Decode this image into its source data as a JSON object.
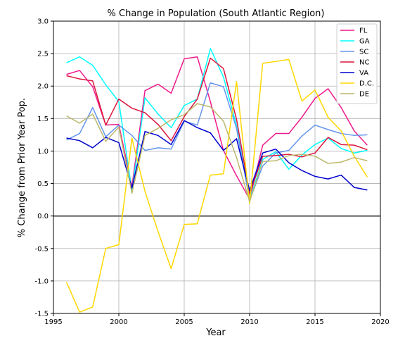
{
  "chart_data": {
    "type": "line",
    "title": "% Change in Population (South Atlantic Region)",
    "xlabel": "Year",
    "ylabel": "% Change from Prior Year Pop.",
    "xlim": [
      1995,
      2020
    ],
    "ylim": [
      -1.5,
      3.0
    ],
    "xticks": [
      "1995",
      "2000",
      "2005",
      "2010",
      "2015",
      "2020"
    ],
    "yticks": [
      "-1.5",
      "-1.0",
      "-0.5",
      "0.0",
      "0.5",
      "1.0",
      "1.5",
      "2.0",
      "2.5",
      "3.0"
    ],
    "grid": true,
    "legend": "top-right",
    "reference_line_y": 0,
    "x": [
      1996,
      1997,
      1998,
      1999,
      2000,
      2001,
      2002,
      2003,
      2004,
      2005,
      2006,
      2007,
      2008,
      2009,
      2010,
      2011,
      2012,
      2013,
      2014,
      2015,
      2016,
      2017,
      2018,
      2019
    ],
    "series": [
      {
        "name": "FL",
        "color": "#ee1a8c",
        "values": [
          2.18,
          2.24,
          1.99,
          1.4,
          1.41,
          0.45,
          1.93,
          2.03,
          1.89,
          2.42,
          2.45,
          1.76,
          1.01,
          0.62,
          0.26,
          1.09,
          1.27,
          1.27,
          1.52,
          1.81,
          1.96,
          1.67,
          1.31,
          1.09
        ]
      },
      {
        "name": "GA",
        "color": "#00ffff",
        "values": [
          2.36,
          2.45,
          2.32,
          2.02,
          1.76,
          0.38,
          1.82,
          1.57,
          1.36,
          1.7,
          1.8,
          2.58,
          2.14,
          1.39,
          0.25,
          0.87,
          0.99,
          0.72,
          0.94,
          1.1,
          1.2,
          1.04,
          0.97,
          1.01
        ]
      },
      {
        "name": "SC",
        "color": "#6495ed",
        "values": [
          1.17,
          1.27,
          1.67,
          1.22,
          1.4,
          1.24,
          1.01,
          1.05,
          1.03,
          1.46,
          1.4,
          2.05,
          1.99,
          1.35,
          0.24,
          0.77,
          0.97,
          1.01,
          1.23,
          1.4,
          1.33,
          1.27,
          1.24,
          1.25
        ]
      },
      {
        "name": "NC",
        "color": "#dc143c",
        "values": [
          2.16,
          2.11,
          2.08,
          1.4,
          1.8,
          1.66,
          1.59,
          1.41,
          1.16,
          1.53,
          1.8,
          2.43,
          2.27,
          1.49,
          0.34,
          0.92,
          0.93,
          0.95,
          0.91,
          0.97,
          1.21,
          1.1,
          1.09,
          1.02
        ]
      },
      {
        "name": "VA",
        "color": "#0000cd",
        "values": [
          1.2,
          1.16,
          1.05,
          1.21,
          1.13,
          0.43,
          1.3,
          1.24,
          1.1,
          1.47,
          1.36,
          1.28,
          1.01,
          1.19,
          0.39,
          0.97,
          1.03,
          0.82,
          0.7,
          0.61,
          0.57,
          0.63,
          0.44,
          0.4
        ]
      },
      {
        "name": "D.C.",
        "color": "#ffd700",
        "values": [
          -1.02,
          -1.48,
          -1.4,
          -0.5,
          -0.44,
          1.2,
          0.38,
          -0.24,
          -0.81,
          -0.13,
          -0.12,
          0.63,
          0.65,
          2.07,
          0.19,
          2.35,
          2.38,
          2.41,
          1.77,
          1.94,
          1.52,
          1.31,
          0.92,
          0.6
        ]
      },
      {
        "name": "DE",
        "color": "#bdb76b",
        "values": [
          1.54,
          1.43,
          1.57,
          1.15,
          1.37,
          0.35,
          1.24,
          1.35,
          1.48,
          1.56,
          1.73,
          1.68,
          1.46,
          0.9,
          0.22,
          0.84,
          0.85,
          0.93,
          0.95,
          0.92,
          0.81,
          0.83,
          0.9,
          0.85
        ]
      }
    ]
  }
}
